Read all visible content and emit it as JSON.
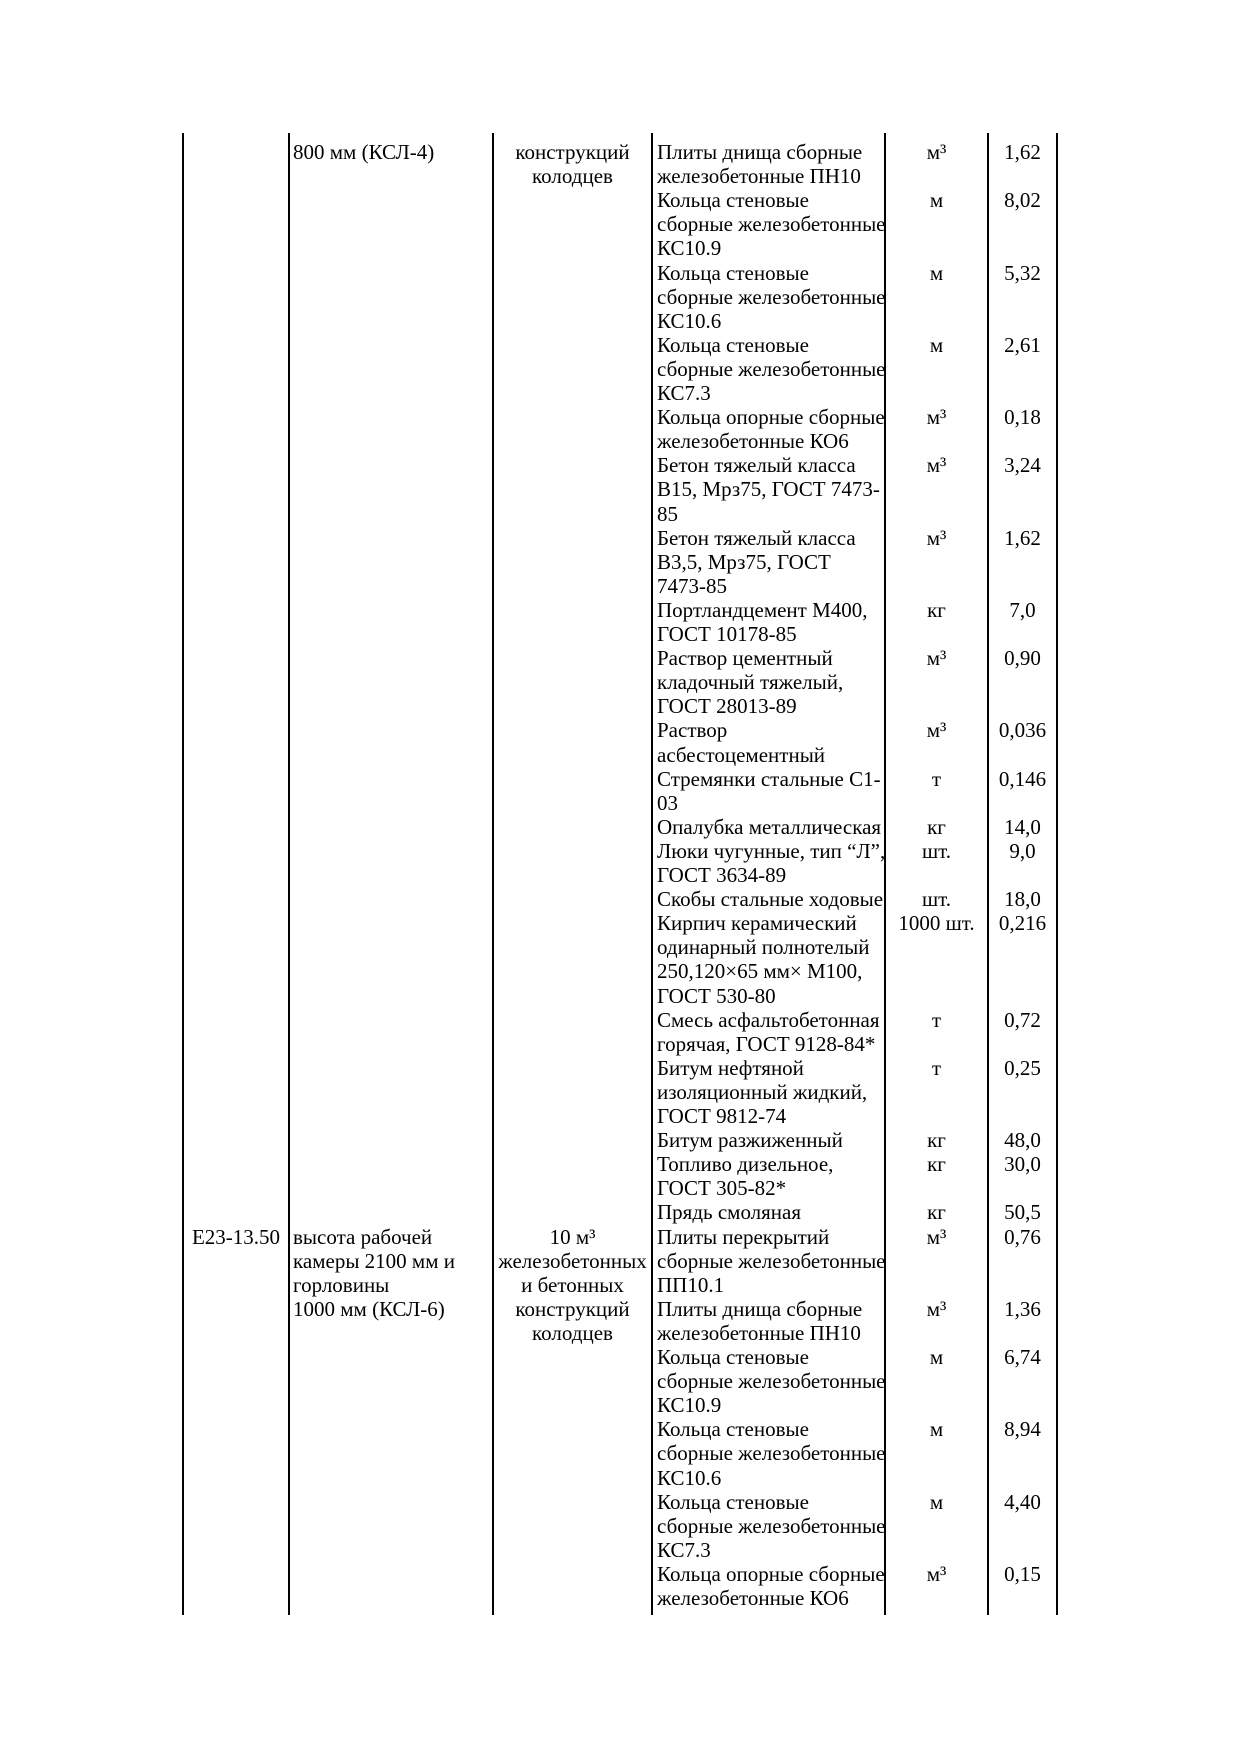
{
  "page": {
    "background_color": "#ffffff",
    "text_color": "#000000",
    "border_color": "#000000"
  },
  "table": {
    "rows": [
      {
        "code": "",
        "description_lines": [
          "800 мм (КСЛ-4)"
        ],
        "unit_lines": [
          "конструкций",
          "колодцев"
        ],
        "materials": [
          {
            "name_lines": [
              "Плиты днища сборные",
              "железобетонные ПН10"
            ],
            "measure": "м³",
            "quantity": "1,62"
          },
          {
            "name_lines": [
              "Кольца стеновые",
              "сборные железобетонные",
              "КС10.9"
            ],
            "measure": "м",
            "quantity": "8,02"
          },
          {
            "name_lines": [
              "Кольца стеновые",
              "сборные железобетонные",
              "КС10.6"
            ],
            "measure": "м",
            "quantity": "5,32"
          },
          {
            "name_lines": [
              "Кольца стеновые",
              "сборные железобетонные",
              "КС7.3"
            ],
            "measure": "м",
            "quantity": "2,61"
          },
          {
            "name_lines": [
              "Кольца опорные сборные",
              "железобетонные КО6"
            ],
            "measure": "м³",
            "quantity": "0,18"
          },
          {
            "name_lines": [
              "Бетон тяжелый класса",
              "В15, Мрз75, ГОСТ 7473-",
              "85"
            ],
            "measure": "м³",
            "quantity": "3,24"
          },
          {
            "name_lines": [
              "Бетон тяжелый класса",
              "В3,5, Мрз75, ГОСТ",
              "7473-85"
            ],
            "measure": "м³",
            "quantity": "1,62"
          },
          {
            "name_lines": [
              "Портландцемент М400,",
              "ГОСТ 10178-85"
            ],
            "measure": "кг",
            "quantity": "7,0"
          },
          {
            "name_lines": [
              "Раствор цементный",
              "кладочный тяжелый,",
              "ГОСТ 28013-89"
            ],
            "measure": "м³",
            "quantity": "0,90"
          },
          {
            "name_lines": [
              "Раствор",
              "асбестоцементный"
            ],
            "measure": "м³",
            "quantity": "0,036"
          },
          {
            "name_lines": [
              "Стремянки стальные С1-",
              "03"
            ],
            "measure": "т",
            "quantity": "0,146"
          },
          {
            "name_lines": [
              "Опалубка металлическая"
            ],
            "measure": "кг",
            "quantity": "14,0"
          },
          {
            "name_lines": [
              "Люки чугунные, тип “Л”,",
              "ГОСТ 3634-89"
            ],
            "measure": "шт.",
            "quantity": "9,0"
          },
          {
            "name_lines": [
              "Скобы стальные ходовые"
            ],
            "measure": "шт.",
            "quantity": "18,0"
          },
          {
            "name_lines": [
              "Кирпич керамический",
              "одинарный полнотелый",
              "250,120×65 мм× М100,",
              "ГОСТ 530-80"
            ],
            "measure": "1000 шт.",
            "quantity": "0,216"
          },
          {
            "name_lines": [
              "Смесь асфальтобетонная",
              "горячая, ГОСТ 9128-84*"
            ],
            "measure": "т",
            "quantity": "0,72"
          },
          {
            "name_lines": [
              "Битум нефтяной",
              "изоляционный жидкий,",
              "ГОСТ 9812-74"
            ],
            "measure": "т",
            "quantity": "0,25"
          },
          {
            "name_lines": [
              "Битум разжиженный"
            ],
            "measure": "кг",
            "quantity": "48,0"
          },
          {
            "name_lines": [
              "Топливо дизельное,",
              "ГОСТ 305-82*"
            ],
            "measure": "кг",
            "quantity": "30,0"
          },
          {
            "name_lines": [
              "Прядь смоляная"
            ],
            "measure": "кг",
            "quantity": "50,5"
          }
        ]
      },
      {
        "code": "Е23-13.50",
        "description_lines": [
          "высота рабочей",
          "камеры 2100 мм и",
          "горловины",
          "1000 мм (КСЛ-6)"
        ],
        "unit_lines": [
          "10 м³",
          "железобетонных",
          "и бетонных",
          "конструкций",
          "колодцев"
        ],
        "materials": [
          {
            "name_lines": [
              "Плиты перекрытий",
              "сборные железобетонные",
              "ПП10.1"
            ],
            "measure": "м³",
            "quantity": "0,76"
          },
          {
            "name_lines": [
              "Плиты днища сборные",
              "железобетонные ПН10"
            ],
            "measure": "м³",
            "quantity": "1,36"
          },
          {
            "name_lines": [
              "Кольца стеновые",
              "сборные железобетонные",
              "КС10.9"
            ],
            "measure": "м",
            "quantity": "6,74"
          },
          {
            "name_lines": [
              "Кольца стеновые",
              "сборные железобетонные",
              "КС10.6"
            ],
            "measure": "м",
            "quantity": "8,94"
          },
          {
            "name_lines": [
              "Кольца стеновые",
              "сборные железобетонные",
              "КС7.3"
            ],
            "measure": "м",
            "quantity": "4,40"
          },
          {
            "name_lines": [
              "Кольца опорные сборные",
              "железобетонные КО6"
            ],
            "measure": "м³",
            "quantity": "0,15"
          }
        ]
      }
    ]
  }
}
